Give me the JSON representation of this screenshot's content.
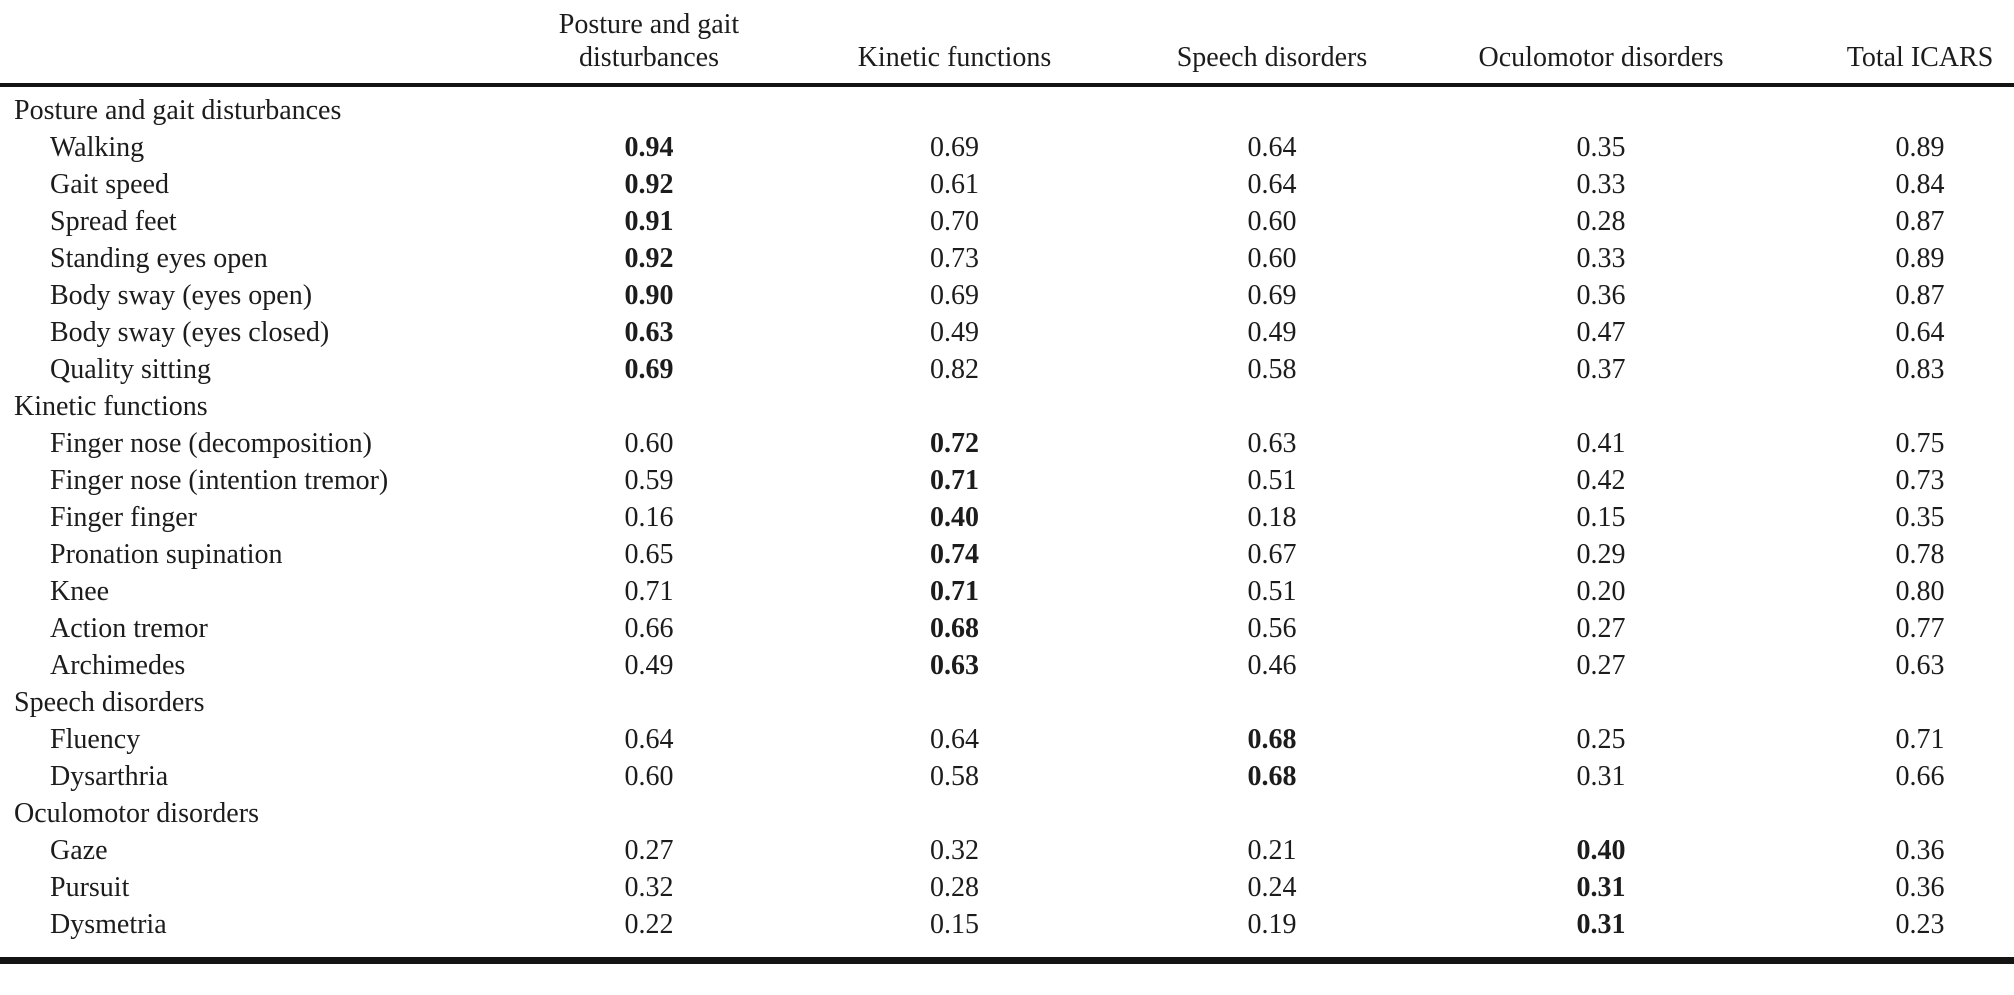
{
  "table": {
    "col_headers": [
      {
        "name": "posture-gait",
        "lines": [
          "Posture and gait",
          "disturbances"
        ]
      },
      {
        "name": "kinetic",
        "lines": [
          "Kinetic functions"
        ]
      },
      {
        "name": "speech",
        "lines": [
          "Speech disorders"
        ]
      },
      {
        "name": "oculomotor",
        "lines": [
          "Oculomotor disorders"
        ]
      },
      {
        "name": "total-icars",
        "lines": [
          "Total ICARS"
        ]
      }
    ],
    "sections": [
      {
        "header": "Posture and gait disturbances",
        "bold_col": 0,
        "rows": [
          {
            "label": "Walking",
            "values": [
              "0.94",
              "0.69",
              "0.64",
              "0.35",
              "0.89"
            ]
          },
          {
            "label": "Gait speed",
            "values": [
              "0.92",
              "0.61",
              "0.64",
              "0.33",
              "0.84"
            ]
          },
          {
            "label": "Spread feet",
            "values": [
              "0.91",
              "0.70",
              "0.60",
              "0.28",
              "0.87"
            ]
          },
          {
            "label": "Standing eyes open",
            "values": [
              "0.92",
              "0.73",
              "0.60",
              "0.33",
              "0.89"
            ]
          },
          {
            "label": "Body sway (eyes open)",
            "values": [
              "0.90",
              "0.69",
              "0.69",
              "0.36",
              "0.87"
            ]
          },
          {
            "label": "Body sway (eyes closed)",
            "values": [
              "0.63",
              "0.49",
              "0.49",
              "0.47",
              "0.64"
            ]
          },
          {
            "label": "Quality sitting",
            "values": [
              "0.69",
              "0.82",
              "0.58",
              "0.37",
              "0.83"
            ]
          }
        ]
      },
      {
        "header": "Kinetic functions",
        "bold_col": 1,
        "rows": [
          {
            "label": "Finger nose (decomposition)",
            "values": [
              "0.60",
              "0.72",
              "0.63",
              "0.41",
              "0.75"
            ]
          },
          {
            "label": "Finger nose (intention tremor)",
            "values": [
              "0.59",
              "0.71",
              "0.51",
              "0.42",
              "0.73"
            ]
          },
          {
            "label": "Finger finger",
            "values": [
              "0.16",
              "0.40",
              "0.18",
              "0.15",
              "0.35"
            ]
          },
          {
            "label": "Pronation supination",
            "values": [
              "0.65",
              "0.74",
              "0.67",
              "0.29",
              "0.78"
            ]
          },
          {
            "label": "Knee",
            "values": [
              "0.71",
              "0.71",
              "0.51",
              "0.20",
              "0.80"
            ]
          },
          {
            "label": "Action tremor",
            "values": [
              "0.66",
              "0.68",
              "0.56",
              "0.27",
              "0.77"
            ]
          },
          {
            "label": "Archimedes",
            "values": [
              "0.49",
              "0.63",
              "0.46",
              "0.27",
              "0.63"
            ]
          }
        ]
      },
      {
        "header": "Speech disorders",
        "bold_col": 2,
        "rows": [
          {
            "label": "Fluency",
            "values": [
              "0.64",
              "0.64",
              "0.68",
              "0.25",
              "0.71"
            ]
          },
          {
            "label": "Dysarthria",
            "values": [
              "0.60",
              "0.58",
              "0.68",
              "0.31",
              "0.66"
            ]
          }
        ]
      },
      {
        "header": "Oculomotor disorders",
        "bold_col": 3,
        "rows": [
          {
            "label": "Gaze",
            "values": [
              "0.27",
              "0.32",
              "0.21",
              "0.40",
              "0.36"
            ]
          },
          {
            "label": "Pursuit",
            "values": [
              "0.32",
              "0.28",
              "0.24",
              "0.31",
              "0.36"
            ]
          },
          {
            "label": "Dysmetria",
            "values": [
              "0.22",
              "0.15",
              "0.19",
              "0.31",
              "0.23"
            ]
          }
        ]
      }
    ]
  }
}
